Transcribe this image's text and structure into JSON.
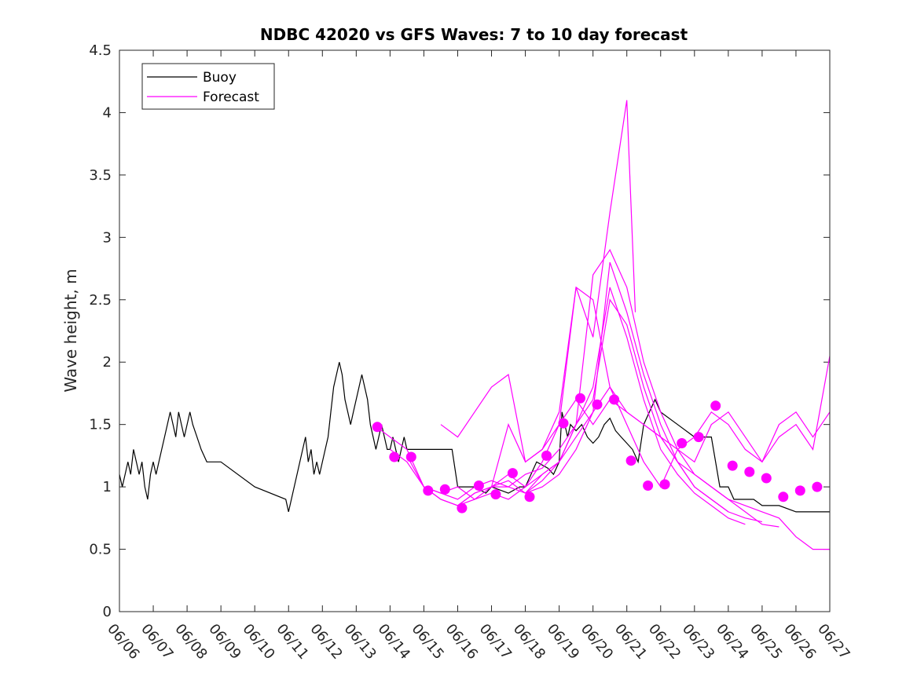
{
  "chart_data": {
    "type": "line",
    "title": "NDBC 42020 vs GFS Waves: 7 to 10 day forecast",
    "xlabel": "",
    "ylabel": "Wave height, m",
    "xlim": [
      "06/06",
      "06/27"
    ],
    "ylim": [
      0,
      4.5
    ],
    "x_tick_labels": [
      "06/06",
      "06/07",
      "06/08",
      "06/09",
      "06/10",
      "06/11",
      "06/12",
      "06/13",
      "06/14",
      "06/15",
      "06/16",
      "06/17",
      "06/18",
      "06/19",
      "06/20",
      "06/21",
      "06/22",
      "06/23",
      "06/24",
      "06/25",
      "06/26",
      "06/27"
    ],
    "y_tick_labels": [
      "0",
      "0.5",
      "1",
      "1.5",
      "2",
      "2.5",
      "3",
      "3.5",
      "4",
      "4.5"
    ],
    "grid": false,
    "legend_position": "top-left",
    "legend": [
      {
        "label": "Buoy",
        "color": "#000000"
      },
      {
        "label": "Forecast",
        "color": "#ff00ff"
      }
    ],
    "series": [
      {
        "name": "Buoy",
        "color": "#000000",
        "x": [
          "06/06 00:00",
          "06/06 02:00",
          "06/06 04:00",
          "06/06 06:00",
          "06/06 08:00",
          "06/06 10:00",
          "06/06 12:00",
          "06/06 14:00",
          "06/06 16:00",
          "06/06 18:00",
          "06/06 20:00",
          "06/06 22:00",
          "06/07 00:00",
          "06/07 02:00",
          "06/07 04:00",
          "06/07 06:00",
          "06/07 08:00",
          "06/07 10:00",
          "06/07 12:00",
          "06/07 14:00",
          "06/07 16:00",
          "06/07 18:00",
          "06/07 20:00",
          "06/07 22:00",
          "06/08 00:00",
          "06/08 02:00",
          "06/08 04:00",
          "06/08 07:00",
          "06/08 10:00",
          "06/08 14:00",
          "06/08 18:00",
          "06/08 21:00",
          "06/09 00:00",
          "06/10 00:00",
          "06/10 22:00",
          "06/11 00:00",
          "06/11 02:00",
          "06/11 04:00",
          "06/11 06:00",
          "06/11 08:00",
          "06/11 10:00",
          "06/11 12:00",
          "06/11 14:00",
          "06/11 16:00",
          "06/11 18:00",
          "06/11 20:00",
          "06/11 22:00",
          "06/12 00:00",
          "06/12 02:00",
          "06/12 04:00",
          "06/12 06:00",
          "06/12 08:00",
          "06/12 10:00",
          "06/12 12:00",
          "06/12 14:00",
          "06/12 16:00",
          "06/12 18:00",
          "06/12 20:00",
          "06/12 22:00",
          "06/13 00:00",
          "06/13 02:00",
          "06/13 04:00",
          "06/13 06:00",
          "06/13 08:00",
          "06/13 10:00",
          "06/13 12:00",
          "06/13 14:00",
          "06/13 16:00",
          "06/13 18:00",
          "06/13 20:00",
          "06/13 22:00",
          "06/14 00:00",
          "06/14 02:00",
          "06/14 04:00",
          "06/14 06:00",
          "06/14 08:00",
          "06/14 10:00",
          "06/14 12:00",
          "06/14 14:00",
          "06/14 16:00",
          "06/14 18:00",
          "06/14 20:00",
          "06/14 22:00",
          "06/15 00:00",
          "06/15 12:00",
          "06/15 20:00",
          "06/16 00:00",
          "06/16 12:00",
          "06/16 20:00",
          "06/17 00:00",
          "06/17 12:00",
          "06/17 20:00",
          "06/18 00:00",
          "06/18 08:00",
          "06/18 16:00",
          "06/18 20:00",
          "06/19 00:00",
          "06/19 02:00",
          "06/19 04:00",
          "06/19 06:00",
          "06/19 08:00",
          "06/19 12:00",
          "06/19 16:00",
          "06/19 20:00",
          "06/20 00:00",
          "06/20 04:00",
          "06/20 08:00",
          "06/20 12:00",
          "06/20 16:00",
          "06/20 20:00",
          "06/21 00:00",
          "06/21 04:00",
          "06/21 08:00",
          "06/21 12:00",
          "06/21 20:00",
          "06/22 00:00",
          "06/22 12:00",
          "06/23 00:00",
          "06/23 12:00",
          "06/23 18:00",
          "06/24 00:00",
          "06/24 04:00",
          "06/24 08:00",
          "06/24 12:00",
          "06/24 18:00",
          "06/25 00:00",
          "06/25 12:00",
          "06/26 00:00",
          "06/26 12:00",
          "06/27 00:00"
        ],
        "values": [
          1.1,
          1.0,
          1.1,
          1.2,
          1.1,
          1.3,
          1.2,
          1.1,
          1.2,
          1.0,
          0.9,
          1.1,
          1.2,
          1.1,
          1.2,
          1.3,
          1.4,
          1.5,
          1.6,
          1.5,
          1.4,
          1.6,
          1.5,
          1.4,
          1.5,
          1.6,
          1.5,
          1.4,
          1.3,
          1.2,
          1.2,
          1.2,
          1.2,
          1.0,
          0.9,
          0.8,
          0.9,
          1.0,
          1.1,
          1.2,
          1.3,
          1.4,
          1.2,
          1.3,
          1.1,
          1.2,
          1.1,
          1.2,
          1.3,
          1.4,
          1.6,
          1.8,
          1.9,
          2.0,
          1.9,
          1.7,
          1.6,
          1.5,
          1.6,
          1.7,
          1.8,
          1.9,
          1.8,
          1.7,
          1.5,
          1.4,
          1.3,
          1.4,
          1.5,
          1.4,
          1.3,
          1.3,
          1.4,
          1.3,
          1.2,
          1.3,
          1.4,
          1.3,
          1.3,
          1.3,
          1.3,
          1.3,
          1.3,
          1.3,
          1.3,
          1.3,
          1.0,
          1.0,
          0.95,
          1.0,
          0.95,
          1.0,
          1.0,
          1.2,
          1.15,
          1.1,
          1.2,
          1.6,
          1.5,
          1.4,
          1.5,
          1.45,
          1.5,
          1.4,
          1.35,
          1.4,
          1.5,
          1.55,
          1.45,
          1.4,
          1.35,
          1.3,
          1.2,
          1.5,
          1.7,
          1.6,
          1.5,
          1.4,
          1.4,
          1.0,
          1.0,
          0.9,
          0.9,
          0.9,
          0.9,
          0.85,
          0.85,
          0.8,
          0.8,
          0.8
        ]
      },
      {
        "name": "Forecast",
        "color": "#ff00ff",
        "x": [
          "06/13 12:00",
          "06/14 00:00",
          "06/14 12:00",
          "06/15 00:00",
          "06/15 12:00",
          "06/16 00:00",
          "06/16 12:00",
          "06/17 00:00",
          "06/17 12:00",
          "06/18 00:00",
          "06/18 12:00",
          "06/19 00:00",
          "06/19 12:00",
          "06/20 00:00",
          "06/20 12:00",
          "06/21 00:00",
          "06/21 12:00",
          "06/22 00:00",
          "06/22 12:00",
          "06/23 00:00",
          "06/23 12:00",
          "06/24 00:00"
        ],
        "values": [
          1.5,
          1.4,
          1.3,
          1.0,
          0.95,
          1.0,
          0.9,
          1.0,
          1.0,
          1.1,
          1.15,
          1.3,
          1.5,
          1.7,
          2.5,
          2.3,
          1.8,
          1.4,
          1.2,
          1.0,
          0.9,
          0.8
        ]
      },
      {
        "x": [
          "06/14 00:00",
          "06/14 12:00",
          "06/15 00:00",
          "06/15 12:00",
          "06/16 00:00",
          "06/16 12:00",
          "06/17 00:00",
          "06/17 12:00",
          "06/18 00:00",
          "06/18 12:00",
          "06/19 00:00",
          "06/19 12:00",
          "06/20 00:00",
          "06/20 12:00",
          "06/21 00:00",
          "06/21 12:00",
          "06/22 00:00",
          "06/22 12:00",
          "06/23 00:00",
          "06/23 12:00",
          "06/24 00:00",
          "06/24 12:00"
        ],
        "values": [
          1.3,
          1.2,
          1.0,
          0.9,
          0.85,
          0.9,
          0.95,
          0.9,
          1.0,
          1.1,
          1.2,
          1.5,
          1.8,
          2.6,
          2.2,
          1.7,
          1.3,
          1.1,
          0.95,
          0.85,
          0.75,
          0.7
        ],
        "color": "#ff00ff"
      },
      {
        "x": [
          "06/14 12:00",
          "06/15 00:00",
          "06/15 12:00",
          "06/16 00:00",
          "06/16 12:00",
          "06/17 00:00",
          "06/17 12:00",
          "06/18 00:00",
          "06/18 12:00",
          "06/19 00:00",
          "06/19 12:00",
          "06/20 00:00",
          "06/20 12:00",
          "06/21 00:00",
          "06/21 12:00",
          "06/22 00:00",
          "06/22 12:00",
          "06/23 00:00",
          "06/23 12:00",
          "06/24 00:00",
          "06/24 12:00",
          "06/25 00:00"
        ],
        "values": [
          1.25,
          1.0,
          0.9,
          0.85,
          0.95,
          1.0,
          1.05,
          0.95,
          1.0,
          1.1,
          1.3,
          1.6,
          2.8,
          2.4,
          1.9,
          1.5,
          1.2,
          1.0,
          0.9,
          0.8,
          0.75,
          0.72
        ],
        "color": "#ff00ff"
      },
      {
        "x": [
          "06/15 00:00",
          "06/15 12:00",
          "06/16 00:00",
          "06/16 12:00",
          "06/17 00:00",
          "06/17 12:00",
          "06/18 00:00",
          "06/18 12:00",
          "06/19 00:00",
          "06/19 12:00",
          "06/20 00:00",
          "06/20 12:00",
          "06/21 00:00",
          "06/21 12:00",
          "06/22 00:00",
          "06/22 12:00",
          "06/23 00:00",
          "06/23 12:00",
          "06/24 00:00",
          "06/24 12:00",
          "06/25 00:00",
          "06/25 12:00"
        ],
        "values": [
          1.0,
          0.95,
          0.9,
          1.0,
          1.05,
          1.0,
          0.95,
          1.1,
          1.2,
          1.5,
          2.7,
          2.9,
          2.6,
          2.0,
          1.6,
          1.3,
          1.1,
          1.0,
          0.9,
          0.8,
          0.7,
          0.68
        ],
        "color": "#ff00ff"
      },
      {
        "x": [
          "06/15 12:00",
          "06/16 00:00",
          "06/16 12:00",
          "06/17 00:00",
          "06/17 12:00",
          "06/18 00:00",
          "06/18 12:00",
          "06/19 00:00",
          "06/19 12:00",
          "06/20 00:00",
          "06/20 12:00",
          "06/21 00:00",
          "06/21 06:00"
        ],
        "values": [
          1.5,
          1.4,
          1.6,
          1.8,
          1.9,
          1.2,
          1.3,
          1.6,
          2.6,
          2.2,
          3.2,
          4.1,
          2.4
        ],
        "color": "#ff00ff"
      },
      {
        "x": [
          "06/16 00:00",
          "06/16 12:00",
          "06/17 00:00",
          "06/17 12:00",
          "06/18 00:00",
          "06/18 12:00",
          "06/19 00:00",
          "06/19 12:00",
          "06/20 00:00",
          "06/20 12:00",
          "06/21 00:00",
          "06/21 12:00",
          "06/22 00:00",
          "06/22 12:00",
          "06/23 00:00",
          "06/23 12:00",
          "06/24 00:00",
          "06/24 12:00",
          "06/25 00:00",
          "06/25 12:00",
          "06/26 00:00",
          "06/26 12:00",
          "06/27 00:00"
        ],
        "values": [
          0.85,
          0.95,
          1.0,
          1.5,
          1.2,
          1.3,
          1.5,
          2.6,
          2.5,
          1.8,
          1.6,
          1.5,
          1.4,
          1.2,
          1.1,
          1.0,
          0.9,
          0.85,
          0.8,
          0.75,
          0.6,
          0.5,
          0.5
        ],
        "color": "#ff00ff"
      },
      {
        "x": [
          "06/17 00:00",
          "06/17 12:00",
          "06/18 00:00",
          "06/18 12:00",
          "06/19 00:00",
          "06/19 12:00",
          "06/20 00:00",
          "06/20 12:00",
          "06/21 00:00",
          "06/21 12:00",
          "06/22 00:00",
          "06/22 12:00",
          "06/23 00:00",
          "06/23 12:00",
          "06/24 00:00",
          "06/24 12:00",
          "06/25 00:00",
          "06/25 12:00",
          "06/26 00:00",
          "06/26 12:00",
          "06/27 00:00"
        ],
        "values": [
          1.0,
          1.1,
          1.0,
          1.2,
          1.5,
          1.7,
          1.5,
          1.7,
          1.6,
          1.5,
          1.4,
          1.3,
          1.2,
          1.5,
          1.6,
          1.4,
          1.2,
          1.5,
          1.6,
          1.4,
          1.6
        ],
        "color": "#ff00ff"
      },
      {
        "x": [
          "06/18 00:00",
          "06/18 12:00",
          "06/19 00:00",
          "06/19 12:00",
          "06/20 00:00",
          "06/20 12:00",
          "06/21 00:00",
          "06/21 12:00",
          "06/22 00:00",
          "06/22 12:00",
          "06/23 00:00",
          "06/23 12:00",
          "06/24 00:00",
          "06/24 12:00",
          "06/25 00:00",
          "06/25 12:00",
          "06/26 00:00",
          "06/26 12:00",
          "06/27 00:00"
        ],
        "values": [
          0.95,
          1.05,
          1.2,
          1.4,
          1.6,
          1.8,
          1.5,
          1.2,
          1.0,
          1.3,
          1.4,
          1.6,
          1.5,
          1.3,
          1.2,
          1.4,
          1.5,
          1.3,
          2.05
        ],
        "color": "#ff00ff"
      }
    ],
    "markers": {
      "name": "Forecast",
      "color": "#ff00ff",
      "x": [
        "06/13 15:00",
        "06/14 03:00",
        "06/14 15:00",
        "06/15 03:00",
        "06/15 15:00",
        "06/16 03:00",
        "06/16 15:00",
        "06/17 03:00",
        "06/17 15:00",
        "06/18 03:00",
        "06/18 15:00",
        "06/19 03:00",
        "06/19 15:00",
        "06/20 03:00",
        "06/20 15:00",
        "06/21 03:00",
        "06/21 15:00",
        "06/22 03:00",
        "06/22 15:00",
        "06/23 03:00",
        "06/23 15:00",
        "06/24 03:00",
        "06/24 15:00",
        "06/25 03:00",
        "06/25 15:00",
        "06/26 03:00",
        "06/26 15:00"
      ],
      "values": [
        1.48,
        1.24,
        1.24,
        0.97,
        0.98,
        0.83,
        1.01,
        0.94,
        1.11,
        0.92,
        1.25,
        1.51,
        1.71,
        1.66,
        1.7,
        1.21,
        1.01,
        1.02,
        1.35,
        1.4,
        1.65,
        1.17,
        1.12,
        1.07,
        0.92,
        0.97,
        1.0
      ]
    }
  }
}
